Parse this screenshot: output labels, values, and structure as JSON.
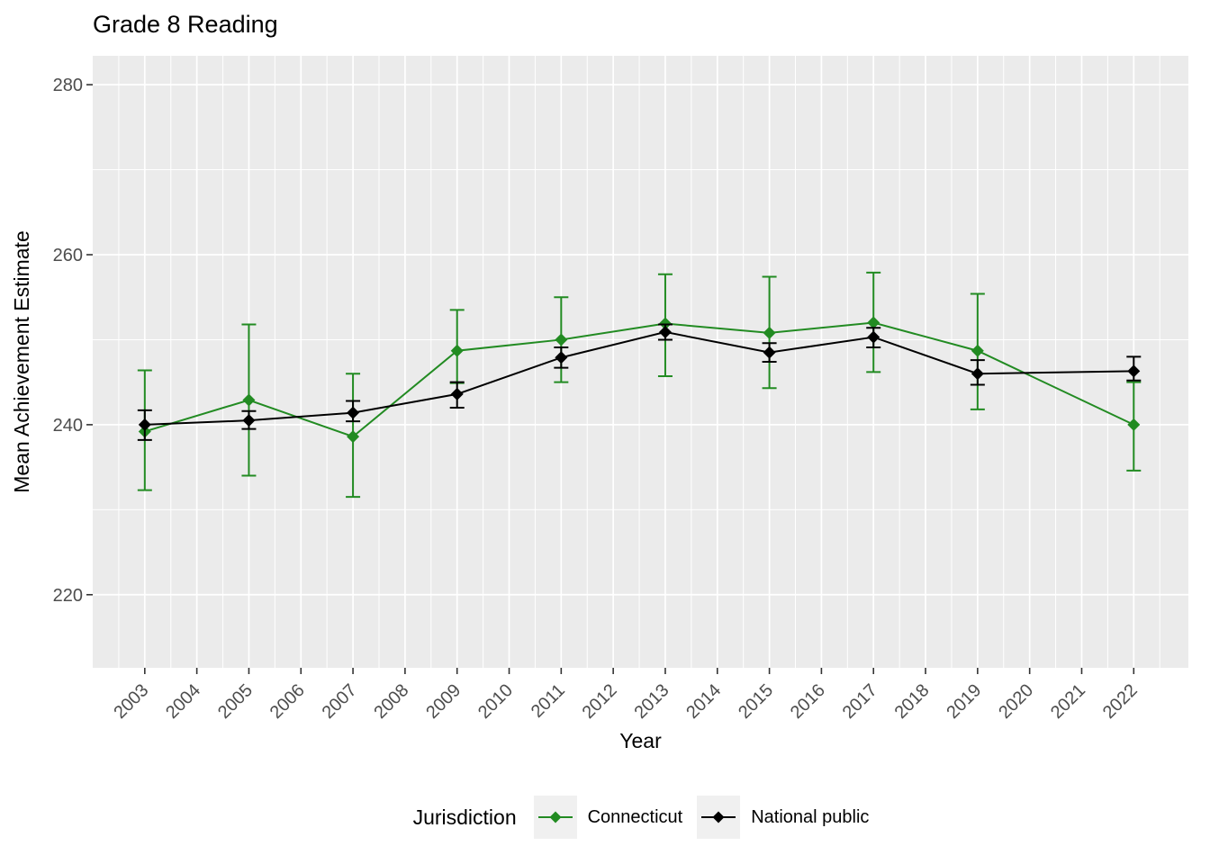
{
  "chart_data": {
    "type": "line",
    "title": "Grade 8 Reading",
    "xlabel": "Year",
    "ylabel": "Mean Achievement Estimate",
    "legend_title": "Jurisdiction",
    "legend_position": "bottom",
    "grid": true,
    "panel_bg": "#EBEBEB",
    "grid_color": "#FFFFFF",
    "tick_color": "#333333",
    "tick_label_color": "#4D4D4D",
    "x_tick_labels": [
      "2003",
      "2004",
      "2005",
      "2006",
      "2007",
      "2008",
      "2009",
      "2010",
      "2011",
      "2012",
      "2013",
      "2014",
      "2015",
      "2016",
      "2017",
      "2018",
      "2019",
      "2020",
      "2021",
      "2022"
    ],
    "y_tick_labels": [
      "220",
      "240",
      "260",
      "280"
    ],
    "y_minor_ticks": [
      230,
      250,
      270
    ],
    "xlim": [
      2002,
      2023.05
    ],
    "ylim": [
      211.4,
      283.4
    ],
    "x": [
      2003,
      2005,
      2007,
      2009,
      2011,
      2013,
      2015,
      2017,
      2019,
      2022
    ],
    "series": [
      {
        "name": "Connecticut",
        "color": "#228B22",
        "values": [
          239.2,
          242.9,
          238.6,
          248.7,
          250.0,
          251.9,
          250.8,
          252.0,
          248.7,
          240.0
        ],
        "err_low": [
          232.3,
          234.0,
          231.5,
          244.9,
          245.0,
          245.7,
          244.3,
          246.2,
          241.8,
          234.6
        ],
        "err_high": [
          246.4,
          251.8,
          246.0,
          253.5,
          255.0,
          257.7,
          257.4,
          257.9,
          255.4,
          245.0
        ]
      },
      {
        "name": "National public",
        "color": "#000000",
        "values": [
          240.0,
          240.5,
          241.4,
          243.6,
          247.9,
          250.9,
          248.5,
          250.3,
          246.0,
          246.3
        ],
        "err_low": [
          238.2,
          239.5,
          240.4,
          242.0,
          246.7,
          250.0,
          247.4,
          249.1,
          244.7,
          245.2
        ],
        "err_high": [
          241.7,
          241.6,
          242.8,
          245.0,
          249.1,
          251.8,
          249.6,
          251.4,
          247.6,
          248.0
        ]
      }
    ]
  }
}
